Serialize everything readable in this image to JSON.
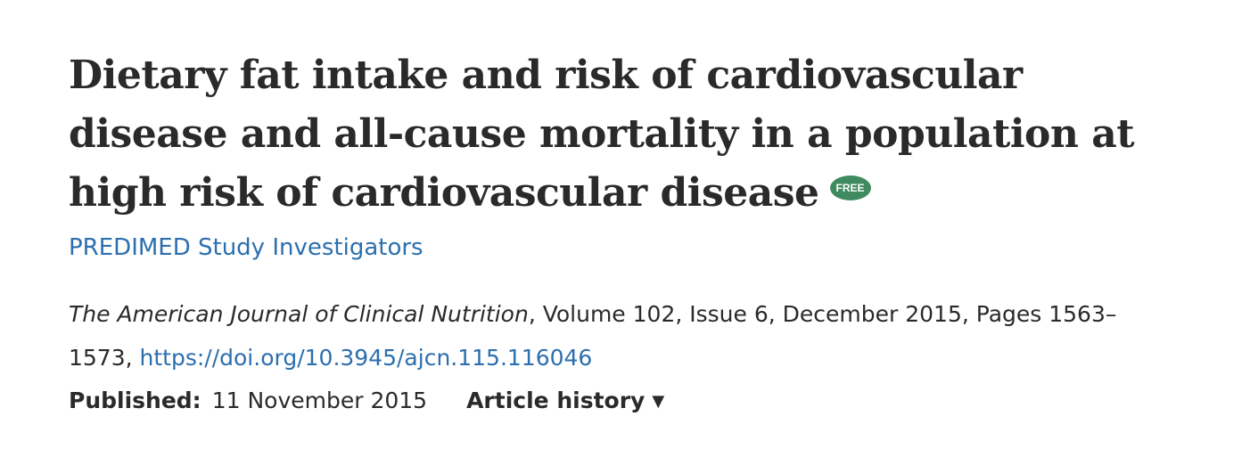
{
  "article": {
    "title": "Dietary fat intake and risk of cardiovascular disease and all-cause mortality in a population at high risk of cardiovascular disease",
    "free_badge": "FREE",
    "authors": "PREDIMED Study Investigators"
  },
  "citation": {
    "journal": "The American Journal of Clinical Nutrition",
    "details": ", Volume 102, Issue 6, December 2015, Pages 1563–1573, ",
    "doi": "https://doi.org/10.3945/ajcn.115.116046"
  },
  "meta": {
    "published_label": "Published:",
    "published_date": "11 November 2015",
    "history_label": "Article history",
    "history_icon": "triangle-down-icon"
  },
  "colors": {
    "text": "#2a2a2a",
    "link": "#2c6fae",
    "badge": "#3f8a5f"
  }
}
